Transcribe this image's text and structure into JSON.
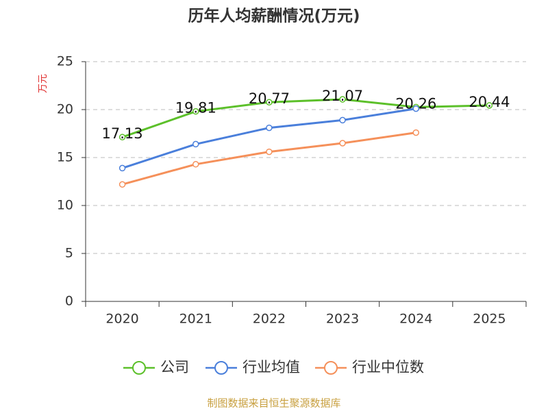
{
  "chart_data": {
    "type": "line",
    "title": "历年人均薪酬情况(万元)",
    "y_label": "万元",
    "categories": [
      "2020",
      "2021",
      "2022",
      "2023",
      "2024",
      "2025"
    ],
    "series": [
      {
        "name": "公司",
        "color": "#5cc02a",
        "values": [
          17.13,
          19.81,
          20.77,
          21.07,
          20.26,
          20.44
        ],
        "show_labels": true
      },
      {
        "name": "行业均值",
        "color": "#4a7fdb",
        "values": [
          13.9,
          16.4,
          18.1,
          18.9,
          20.1,
          null
        ]
      },
      {
        "name": "行业中位数",
        "color": "#f5905a",
        "values": [
          12.2,
          14.3,
          15.6,
          16.5,
          17.6,
          null
        ]
      }
    ],
    "ylim": [
      0,
      25
    ],
    "yticks": [
      0,
      5,
      10,
      15,
      20,
      25
    ],
    "grid": true,
    "source": "制图数据来自恒生聚源数据库"
  }
}
